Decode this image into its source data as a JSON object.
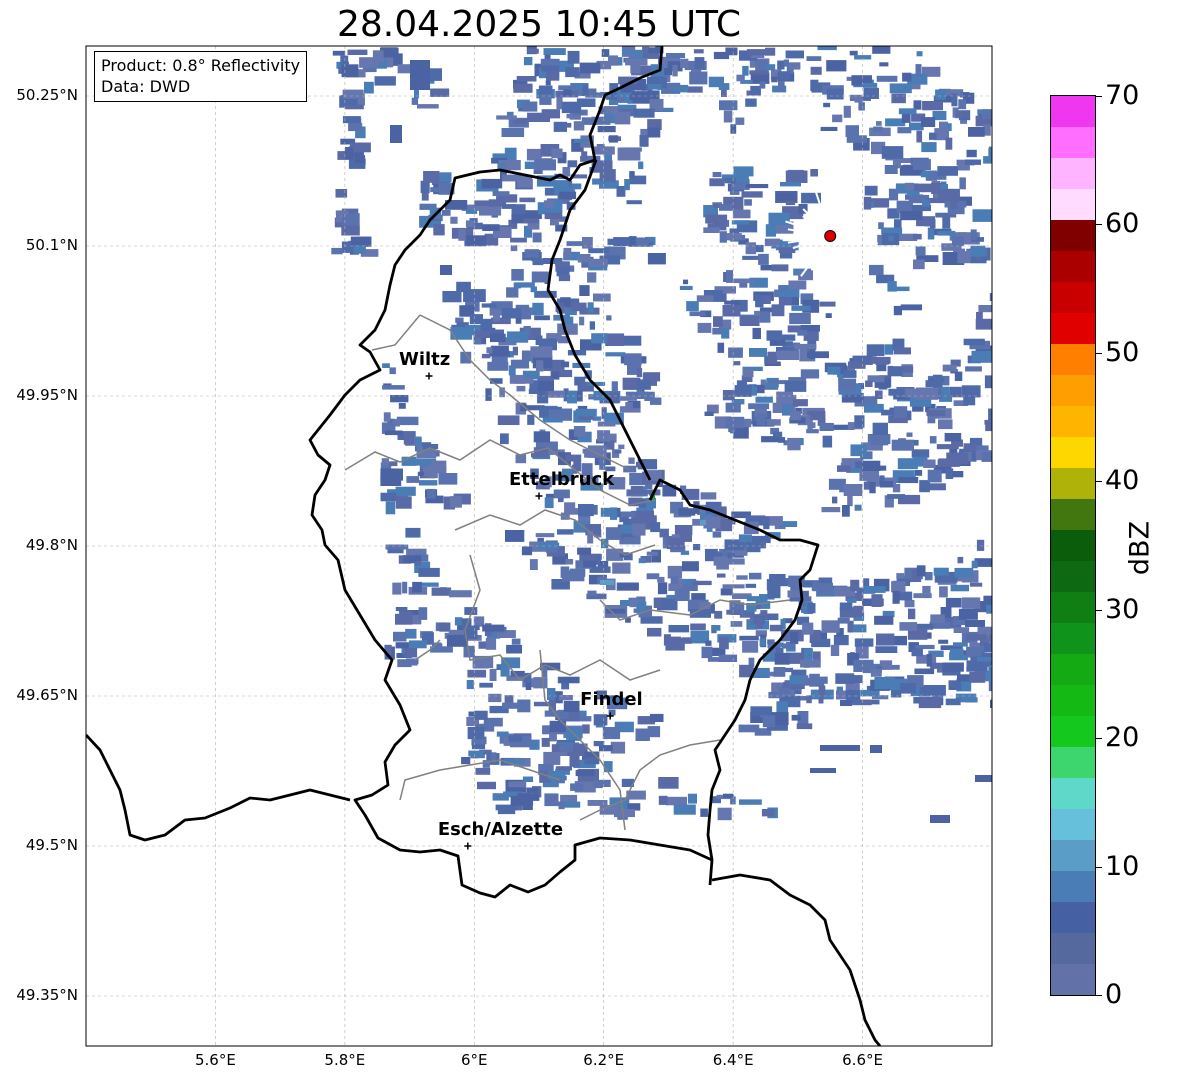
{
  "title": "28.04.2025 10:45 UTC",
  "info": {
    "product": "Product: 0.8° Reflectivity",
    "data": "Data: DWD"
  },
  "map": {
    "lon_range": [
      5.4,
      6.8
    ],
    "lat_range": [
      49.3,
      50.3
    ],
    "lat_ticks": [
      {
        "value": 50.25,
        "label": "50.25°N"
      },
      {
        "value": 50.1,
        "label": "50.1°N"
      },
      {
        "value": 49.95,
        "label": "49.95°N"
      },
      {
        "value": 49.8,
        "label": "49.8°N"
      },
      {
        "value": 49.65,
        "label": "49.65°N"
      },
      {
        "value": 49.5,
        "label": "49.5°N"
      },
      {
        "value": 49.35,
        "label": "49.35°N"
      }
    ],
    "lon_ticks": [
      {
        "value": 5.6,
        "label": "5.6°E"
      },
      {
        "value": 5.8,
        "label": "5.8°E"
      },
      {
        "value": 6.0,
        "label": "6°E"
      },
      {
        "value": 6.2,
        "label": "6.2°E"
      },
      {
        "value": 6.4,
        "label": "6.4°E"
      },
      {
        "value": 6.6,
        "label": "6.6°E"
      }
    ],
    "radar_site": {
      "lon": 6.55,
      "lat": 50.11
    },
    "cities": [
      {
        "name": "Wiltz",
        "lon": 5.93,
        "lat": 49.97
      },
      {
        "name": "Ettelbruck",
        "lon": 6.1,
        "lat": 49.85
      },
      {
        "name": "Findel",
        "lon": 6.21,
        "lat": 49.63
      },
      {
        "name": "Esch/Alzette",
        "lon": 5.99,
        "lat": 49.5
      }
    ],
    "border_color": "#000000",
    "canton_color": "#808080",
    "grid": true
  },
  "colorbar": {
    "label": "dBZ",
    "min": 0,
    "max": 70,
    "tick_values": [
      0,
      10,
      20,
      30,
      40,
      50,
      60,
      70
    ],
    "tick_labels": [
      "0",
      "10",
      "20",
      "30",
      "40",
      "50",
      "60",
      "70"
    ],
    "colors": [
      "#6272a8",
      "#55699f",
      "#4561a3",
      "#4a7db5",
      "#5a9dc6",
      "#66c0dc",
      "#5ed8c8",
      "#3dd66e",
      "#14c81e",
      "#14b914",
      "#14aa14",
      "#0f931a",
      "#0f7f14",
      "#0d6a12",
      "#0b5c0b",
      "#427710",
      "#afb208",
      "#ffd700",
      "#ffb400",
      "#ff9e00",
      "#ff7f00",
      "#e10000",
      "#c80000",
      "#aa0000",
      "#800000",
      "#ffdcff",
      "#ffb4ff",
      "#ff6eff",
      "#ee37ee"
    ]
  },
  "chart_data": {
    "type": "heatmap",
    "title": "28.04.2025 10:45 UTC",
    "xlabel": "",
    "ylabel": "",
    "xlim": [
      5.4,
      6.8
    ],
    "ylim": [
      49.3,
      50.3
    ],
    "colorbar_label": "dBZ",
    "colorbar_range": [
      0,
      70
    ]
  }
}
